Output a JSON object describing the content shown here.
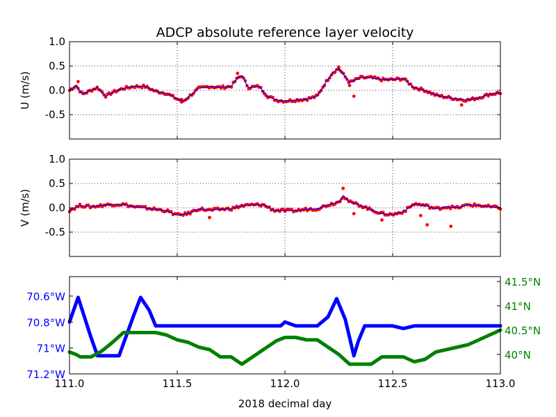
{
  "chart_data": {
    "title": "ADCP absolute reference layer velocity",
    "xlabel": "2018 decimal day",
    "xlim": [
      111.0,
      113.0
    ],
    "xticks": [
      111.0,
      111.5,
      112.0,
      112.5,
      113.0
    ],
    "xtick_labels": [
      "111.0",
      "111.5",
      "112.0",
      "112.5",
      "113.0"
    ],
    "colors": {
      "raw": "#ff0000",
      "smooth": "#0000ff",
      "lon": "#0000ff",
      "lat": "#008000",
      "axes": "#000000"
    },
    "panels": [
      {
        "name": "u",
        "type": "scatter+line",
        "ylabel": "U (m/s)",
        "ylim": [
          -1.0,
          1.0
        ],
        "yticks": [
          -0.5,
          0.0,
          0.5,
          1.0
        ],
        "ytick_labels": [
          "-0.5",
          "0.0",
          "0.5",
          "1.0"
        ],
        "grid": true,
        "series": [
          {
            "name": "U",
            "x": [
              111.0,
              111.03,
              111.06,
              111.1,
              111.13,
              111.17,
              111.2,
              111.25,
              111.3,
              111.35,
              111.4,
              111.45,
              111.5,
              111.53,
              111.6,
              111.65,
              111.7,
              111.75,
              111.78,
              111.8,
              111.83,
              111.88,
              111.92,
              111.96,
              112.0,
              112.05,
              112.1,
              112.15,
              112.18,
              112.22,
              112.25,
              112.3,
              112.35,
              112.4,
              112.45,
              112.5,
              112.55,
              112.6,
              112.65,
              112.7,
              112.75,
              112.8,
              112.85,
              112.9,
              112.95,
              113.0
            ],
            "y": [
              0.0,
              0.1,
              -0.08,
              0.0,
              0.06,
              -0.12,
              -0.04,
              0.04,
              0.08,
              0.08,
              -0.02,
              -0.06,
              -0.18,
              -0.22,
              0.04,
              0.08,
              0.06,
              0.08,
              0.25,
              0.3,
              0.06,
              0.08,
              -0.12,
              -0.2,
              -0.22,
              -0.2,
              -0.18,
              -0.12,
              0.1,
              0.36,
              0.45,
              0.16,
              0.26,
              0.26,
              0.22,
              0.22,
              0.24,
              0.06,
              0.0,
              -0.1,
              -0.14,
              -0.18,
              -0.2,
              -0.15,
              -0.08,
              -0.05
            ]
          }
        ],
        "outliers": [
          {
            "x": 111.04,
            "y": 0.18
          },
          {
            "x": 111.52,
            "y": -0.24
          },
          {
            "x": 111.78,
            "y": 0.35
          },
          {
            "x": 112.3,
            "y": 0.1
          },
          {
            "x": 112.32,
            "y": -0.12
          },
          {
            "x": 112.25,
            "y": 0.48
          },
          {
            "x": 112.82,
            "y": -0.3
          }
        ]
      },
      {
        "name": "v",
        "type": "scatter+line",
        "ylabel": "V (m/s)",
        "ylim": [
          -1.0,
          1.0
        ],
        "yticks": [
          -0.5,
          0.0,
          0.5,
          1.0
        ],
        "ytick_labels": [
          "-0.5",
          "0.0",
          "0.5",
          "1.0"
        ],
        "grid": true,
        "series": [
          {
            "name": "V",
            "x": [
              111.0,
              111.05,
              111.1,
              111.15,
              111.2,
              111.25,
              111.3,
              111.35,
              111.4,
              111.45,
              111.5,
              111.55,
              111.6,
              111.65,
              111.7,
              111.75,
              111.8,
              111.85,
              111.9,
              111.95,
              112.0,
              112.05,
              112.1,
              112.15,
              112.2,
              112.25,
              112.27,
              112.3,
              112.35,
              112.4,
              112.45,
              112.5,
              112.55,
              112.6,
              112.65,
              112.7,
              112.75,
              112.8,
              112.85,
              112.9,
              112.95,
              113.0
            ],
            "y": [
              -0.05,
              0.05,
              0.02,
              0.05,
              0.07,
              0.07,
              0.02,
              0.0,
              -0.03,
              -0.06,
              -0.15,
              -0.12,
              -0.02,
              -0.05,
              -0.03,
              -0.02,
              0.04,
              0.06,
              0.06,
              -0.05,
              -0.06,
              -0.06,
              -0.03,
              -0.02,
              0.06,
              0.12,
              0.25,
              0.12,
              0.05,
              -0.04,
              -0.12,
              -0.14,
              -0.08,
              0.08,
              0.05,
              -0.02,
              0.02,
              0.0,
              0.06,
              0.05,
              0.02,
              0.0
            ]
          }
        ],
        "outliers": [
          {
            "x": 112.27,
            "y": 0.4
          },
          {
            "x": 112.32,
            "y": -0.12
          },
          {
            "x": 112.45,
            "y": -0.25
          },
          {
            "x": 112.63,
            "y": -0.16
          },
          {
            "x": 112.66,
            "y": -0.35
          },
          {
            "x": 112.77,
            "y": -0.38
          },
          {
            "x": 111.65,
            "y": -0.2
          }
        ]
      },
      {
        "name": "position",
        "type": "line",
        "left_axis": {
          "label_color": "#0000ff",
          "ylim": [
            -71.2,
            -70.45
          ],
          "yticks": [
            -71.2,
            -71.0,
            -70.8,
            -70.6
          ],
          "ytick_labels": [
            "71.2°W",
            "71°W",
            "70.8°W",
            "70.6°W"
          ]
        },
        "right_axis": {
          "label_color": "#008000",
          "ylim": [
            39.6,
            41.6
          ],
          "yticks": [
            40.0,
            40.5,
            41.0,
            41.5
          ],
          "ytick_labels": [
            "40°N",
            "40.5°N",
            "41°N",
            "41.5°N"
          ]
        },
        "series": [
          {
            "name": "longitude",
            "axis": "left",
            "color": "#0000ff",
            "x": [
              111.0,
              111.04,
              111.1,
              111.13,
              111.2,
              111.23,
              111.3,
              111.33,
              111.37,
              111.4,
              111.45,
              111.5,
              111.55,
              111.6,
              111.7,
              111.8,
              111.9,
              111.98,
              112.0,
              112.05,
              112.1,
              112.15,
              112.2,
              112.24,
              112.28,
              112.32,
              112.34,
              112.37,
              112.4,
              112.45,
              112.5,
              112.55,
              112.6,
              112.7,
              112.8,
              112.9,
              113.0
            ],
            "y": [
              -70.8,
              -70.61,
              -70.92,
              -71.06,
              -71.06,
              -71.06,
              -70.74,
              -70.61,
              -70.71,
              -70.83,
              -70.83,
              -70.83,
              -70.83,
              -70.83,
              -70.83,
              -70.83,
              -70.83,
              -70.83,
              -70.8,
              -70.83,
              -70.83,
              -70.83,
              -70.76,
              -70.62,
              -70.78,
              -71.06,
              -70.95,
              -70.83,
              -70.83,
              -70.83,
              -70.83,
              -70.85,
              -70.83,
              -70.83,
              -70.83,
              -70.83,
              -70.83
            ]
          },
          {
            "name": "latitude",
            "axis": "right",
            "color": "#008000",
            "x": [
              111.0,
              111.03,
              111.05,
              111.1,
              111.15,
              111.2,
              111.25,
              111.3,
              111.4,
              111.45,
              111.5,
              111.55,
              111.6,
              111.65,
              111.7,
              111.75,
              111.8,
              111.85,
              111.9,
              111.96,
              112.0,
              112.05,
              112.1,
              112.15,
              112.2,
              112.25,
              112.3,
              112.35,
              112.4,
              112.45,
              112.5,
              112.55,
              112.6,
              112.65,
              112.7,
              112.75,
              112.8,
              112.85,
              112.9,
              113.0
            ],
            "y": [
              40.05,
              40.0,
              39.95,
              39.95,
              40.07,
              40.25,
              40.45,
              40.45,
              40.45,
              40.4,
              40.3,
              40.25,
              40.15,
              40.1,
              39.95,
              39.95,
              39.8,
              39.95,
              40.1,
              40.28,
              40.35,
              40.35,
              40.3,
              40.3,
              40.15,
              40.0,
              39.8,
              39.8,
              39.8,
              39.95,
              39.95,
              39.95,
              39.85,
              39.9,
              40.05,
              40.1,
              40.15,
              40.2,
              40.3,
              40.5
            ]
          }
        ]
      }
    ]
  }
}
